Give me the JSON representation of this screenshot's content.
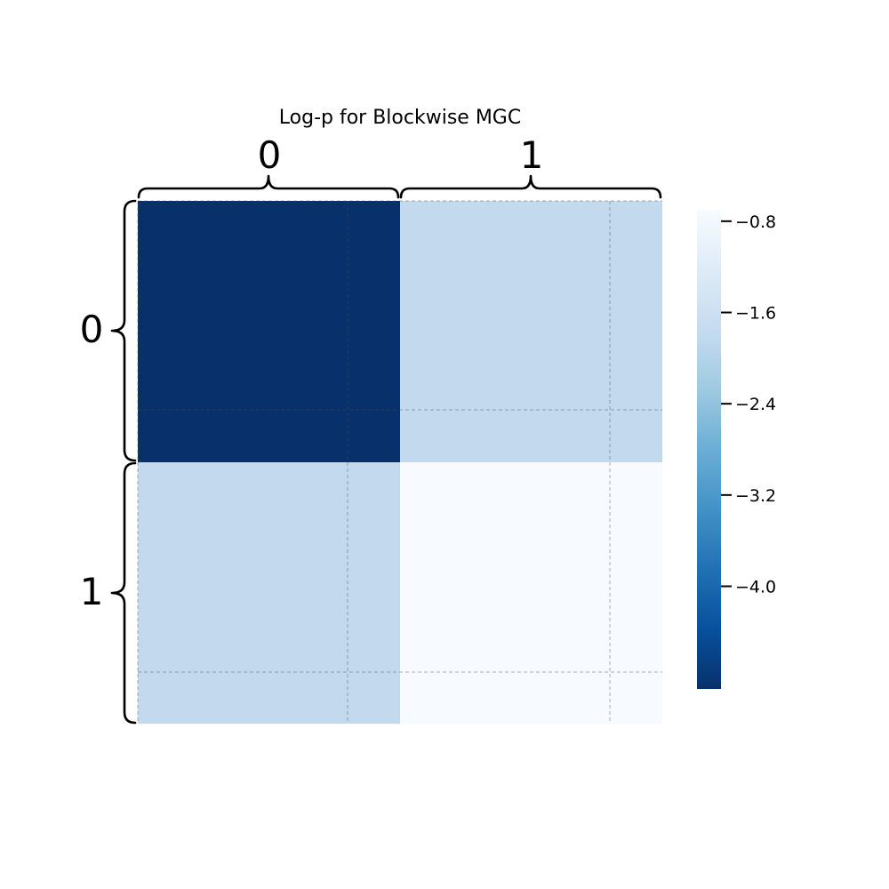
{
  "chart_data": {
    "type": "heatmap",
    "title": "Log-p for Blockwise MGC",
    "colormap": "Blues_r",
    "column_groups": [
      "0",
      "1"
    ],
    "row_groups": [
      "0",
      "1"
    ],
    "values": [
      [
        -4.9,
        -1.8
      ],
      [
        -1.8,
        -0.7
      ]
    ],
    "colorbar": {
      "range": [
        -4.9,
        -0.7
      ],
      "ticks": [
        -0.8,
        -1.6,
        -2.4,
        -3.2,
        -4.0
      ],
      "tick_labels": [
        "−0.8",
        "−1.6",
        "−2.4",
        "−3.2",
        "−4.0"
      ]
    },
    "grid": "dashed, at sub-block boundaries"
  }
}
